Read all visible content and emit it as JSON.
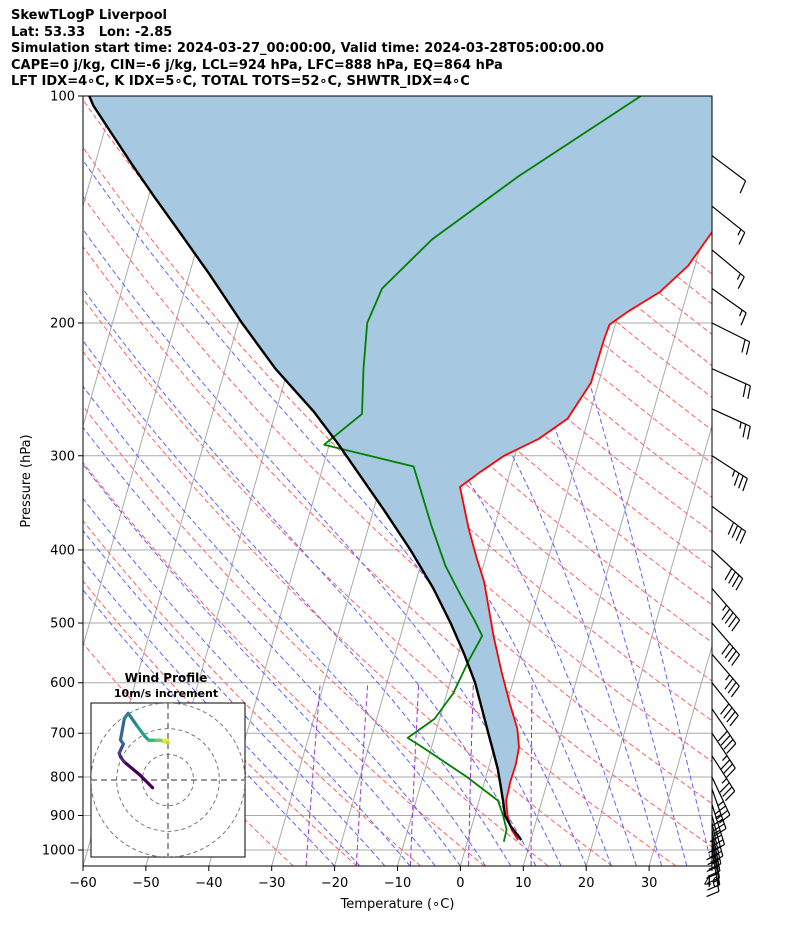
{
  "header": {
    "lines": [
      "SkewTLogP Liverpool",
      "Lat: 53.33   Lon: -2.85",
      "Simulation start time: 2024-03-27_00:00:00, Valid time: 2024-03-28T05:00:00.00",
      "CAPE=0 j/kg, CIN=-6 j/kg, LCL=924 hPa, LFC=888 hPa, EQ=864 hPa",
      "LFT IDX=4∘C, K IDX=5∘C, TOTAL TOTS=52∘C, SHWTR_IDX=4∘C"
    ]
  },
  "chart_data": [
    {
      "type": "line",
      "subtype": "skew-t log-p",
      "xlabel": "Temperature (∘C)",
      "ylabel": "Pressure (hPa)",
      "xlim": [
        -60,
        40
      ],
      "ylim": [
        1050,
        100
      ],
      "y_scale": "log",
      "x_ticks": [
        -60,
        -50,
        -40,
        -30,
        -20,
        -10,
        0,
        10,
        20,
        30,
        40
      ],
      "y_ticks": [
        100,
        200,
        300,
        400,
        500,
        600,
        700,
        800,
        900,
        1000
      ],
      "grid": true,
      "colors": {
        "temperature": "#ff0000",
        "dewpoint": "#008000",
        "parcel": "#000000",
        "cape_fill": "#a6c8e0",
        "dry_adiabats": "#ff6060",
        "moist_adiabats": "#6060ff",
        "mixing_ratio": "#9933cc",
        "isotherms": "#aaaaaa"
      },
      "series": [
        {
          "key": "temperature",
          "points": [
            [
              8.0,
              970
            ],
            [
              6.5,
              940
            ],
            [
              5.2,
              900
            ],
            [
              4.3,
              860
            ],
            [
              4.1,
              810
            ],
            [
              4.2,
              770
            ],
            [
              3.9,
              730
            ],
            [
              2.8,
              690
            ],
            [
              0.5,
              640
            ],
            [
              -2.3,
              580
            ],
            [
              -5.2,
              520
            ],
            [
              -7.1,
              480
            ],
            [
              -9.2,
              440
            ],
            [
              -11.4,
              410
            ],
            [
              -14.0,
              375
            ],
            [
              -17.3,
              330
            ],
            [
              -14.7,
              315
            ],
            [
              -11.7,
              300
            ],
            [
              -7.0,
              285
            ],
            [
              -3.3,
              268
            ],
            [
              -1.2,
              240
            ],
            [
              -1.1,
              210
            ],
            [
              -0.9,
              201
            ],
            [
              1.5,
              193
            ],
            [
              5.6,
              182
            ],
            [
              8.9,
              168
            ],
            [
              10.7,
              155
            ],
            [
              12.7,
              142
            ],
            [
              14.7,
              126
            ],
            [
              16.4,
              115
            ],
            [
              20.6,
              106
            ],
            [
              21.2,
              101
            ],
            [
              20.2,
              100
            ]
          ]
        },
        {
          "key": "dewpoint",
          "points": [
            [
              5.8,
              975
            ],
            [
              5.7,
              940
            ],
            [
              4.5,
              900
            ],
            [
              3.0,
              860
            ],
            [
              -3.0,
              800
            ],
            [
              -11.5,
              730
            ],
            [
              -14.2,
              710
            ],
            [
              -10.8,
              670
            ],
            [
              -9.0,
              620
            ],
            [
              -8.0,
              560
            ],
            [
              -7.0,
              520
            ],
            [
              -9.0,
              495
            ],
            [
              -12.2,
              460
            ],
            [
              -16.0,
              420
            ],
            [
              -20.2,
              370
            ],
            [
              -25.6,
              310
            ],
            [
              -40.8,
              290
            ],
            [
              -36.2,
              264
            ],
            [
              -38.0,
              230
            ],
            [
              -39.5,
              200
            ],
            [
              -38.7,
              180
            ],
            [
              -33.0,
              155
            ],
            [
              -22.2,
              128
            ],
            [
              -6.3,
              100
            ]
          ]
        },
        {
          "key": "parcel",
          "points": [
            [
              8.5,
              970
            ],
            [
              6.2,
              930
            ],
            [
              4.8,
              900
            ],
            [
              3.8,
              860
            ],
            [
              2.7,
              820
            ],
            [
              1.5,
              780
            ],
            [
              0.0,
              740
            ],
            [
              -1.6,
              700
            ],
            [
              -3.7,
              650
            ],
            [
              -6.0,
              600
            ],
            [
              -9.0,
              550
            ],
            [
              -12.6,
              500
            ],
            [
              -16.9,
              450
            ],
            [
              -22.3,
              400
            ],
            [
              -28.2,
              355
            ],
            [
              -34.3,
              315
            ],
            [
              -38.5,
              290
            ],
            [
              -44.0,
              262
            ],
            [
              -52.0,
              230
            ],
            [
              -59.4,
              200
            ],
            [
              -66.9,
              172
            ],
            [
              -73.3,
              152
            ],
            [
              -79.1,
              136
            ],
            [
              -84.2,
              123
            ],
            [
              -88.8,
              112
            ],
            [
              -92.9,
              103
            ],
            [
              -94.0,
              100
            ]
          ]
        }
      ],
      "wind_barbs": {
        "pressures": [
          1000,
          980,
          960,
          940,
          920,
          900,
          870,
          830,
          800,
          750,
          700,
          650,
          600,
          550,
          500,
          450,
          400,
          350,
          300,
          260,
          230,
          200,
          180,
          160,
          140,
          120
        ],
        "u_kt": [
          2,
          3,
          4,
          5,
          6,
          8,
          10,
          12,
          15,
          18,
          20,
          22,
          24,
          24,
          26,
          28,
          30,
          32,
          28,
          22,
          18,
          16,
          14,
          12,
          10,
          8
        ],
        "v_kt": [
          -12,
          -16,
          -22,
          -26,
          -28,
          -30,
          -32,
          -34,
          -32,
          -28,
          -30,
          -32,
          -30,
          -28,
          -30,
          -32,
          -28,
          -24,
          -18,
          -10,
          -8,
          -8,
          -10,
          -10,
          -8,
          -6
        ]
      }
    },
    {
      "type": "line",
      "subtype": "hodograph",
      "title": "Wind Profile",
      "subtitle": "10m/s increment",
      "ring_radii": [
        10,
        20,
        30
      ],
      "range": [
        -30,
        30
      ],
      "colormap": "viridis",
      "points": [
        [
          -6,
          -3
        ],
        [
          -11,
          2
        ],
        [
          -17,
          7
        ],
        [
          -18.5,
          9
        ],
        [
          -19,
          10.5
        ],
        [
          -18.3,
          12
        ],
        [
          -17.4,
          14
        ],
        [
          -18.5,
          15.6
        ],
        [
          -17,
          24
        ],
        [
          -15.5,
          26
        ],
        [
          -12,
          21
        ],
        [
          -9,
          17
        ],
        [
          -7.5,
          15.5
        ],
        [
          -6.2,
          15.5
        ],
        [
          -4.5,
          15.5
        ],
        [
          -3,
          15.5
        ],
        [
          -1.5,
          15
        ],
        [
          0,
          14.5
        ],
        [
          -0.5,
          15.7
        ],
        [
          -1.5,
          15.2
        ]
      ]
    }
  ]
}
